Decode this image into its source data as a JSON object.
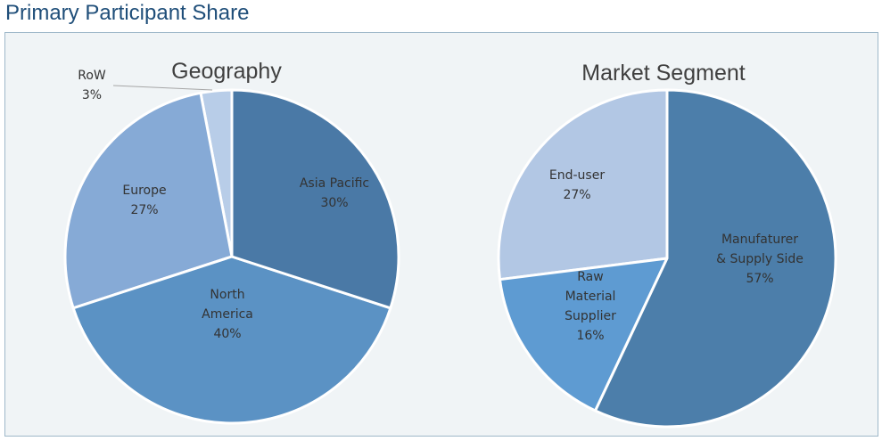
{
  "header": {
    "title": "Primary Participant Share"
  },
  "chart_data": [
    {
      "type": "pie",
      "title": "Geography",
      "slices": [
        {
          "label": [
            "Asia Pacific"
          ],
          "value": 30,
          "value_label": "30%",
          "color": "#4a79a6"
        },
        {
          "label": [
            "North",
            "America"
          ],
          "value": 40,
          "value_label": "40%",
          "color": "#5b92c4"
        },
        {
          "label": [
            "Europe"
          ],
          "value": 27,
          "value_label": "27%",
          "color": "#86aad6"
        },
        {
          "label": [
            "RoW"
          ],
          "value": 3,
          "value_label": "3%",
          "color": "#b8cde8"
        }
      ]
    },
    {
      "type": "pie",
      "title": "Market Segment",
      "slices": [
        {
          "label": [
            "Manufaturer",
            "& Supply Side"
          ],
          "value": 57,
          "value_label": "57%",
          "color": "#4c7eaa"
        },
        {
          "label": [
            "Raw",
            "Material",
            "Supplier"
          ],
          "value": 16,
          "value_label": "16%",
          "color": "#5e9bd2"
        },
        {
          "label": [
            "End-user"
          ],
          "value": 27,
          "value_label": "27%",
          "color": "#b2c7e4"
        }
      ]
    }
  ]
}
